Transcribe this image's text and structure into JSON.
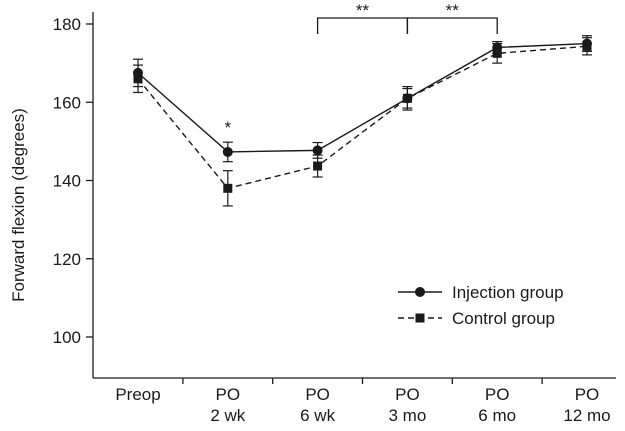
{
  "chart_data": {
    "type": "line",
    "categories": [
      [
        "Preop"
      ],
      [
        "PO",
        "2 wk"
      ],
      [
        "PO",
        "6 wk"
      ],
      [
        "PO",
        "3 mo"
      ],
      [
        "PO",
        "6 mo"
      ],
      [
        "PO",
        "12 mo"
      ]
    ],
    "ylabel": "Forward flexion (degrees)",
    "ylim": [
      90,
      180
    ],
    "yticks": [
      100,
      120,
      140,
      160,
      180
    ],
    "series": [
      {
        "name": "Injection group",
        "marker": "circle",
        "line_style": "solid",
        "values": [
          167.5,
          147.3,
          147.7,
          161.0,
          174.0,
          175.0
        ],
        "errors": [
          3.5,
          2.5,
          2.0,
          3.0,
          1.5,
          2.0
        ]
      },
      {
        "name": "Control group",
        "marker": "square",
        "line_style": "dashed",
        "values": [
          166.0,
          138.0,
          143.7,
          161.0,
          172.5,
          174.3
        ],
        "errors": [
          3.5,
          4.5,
          2.8,
          2.5,
          2.5,
          2.2
        ]
      }
    ],
    "annotations": [
      {
        "type": "point",
        "category_index": 1,
        "text": "*"
      },
      {
        "type": "bracket",
        "from_index": 2,
        "to_index": 3,
        "text": "**"
      },
      {
        "type": "bracket",
        "from_index": 3,
        "to_index": 4,
        "text": "**"
      }
    ],
    "legend_position": "bottom-right",
    "grid": false
  }
}
